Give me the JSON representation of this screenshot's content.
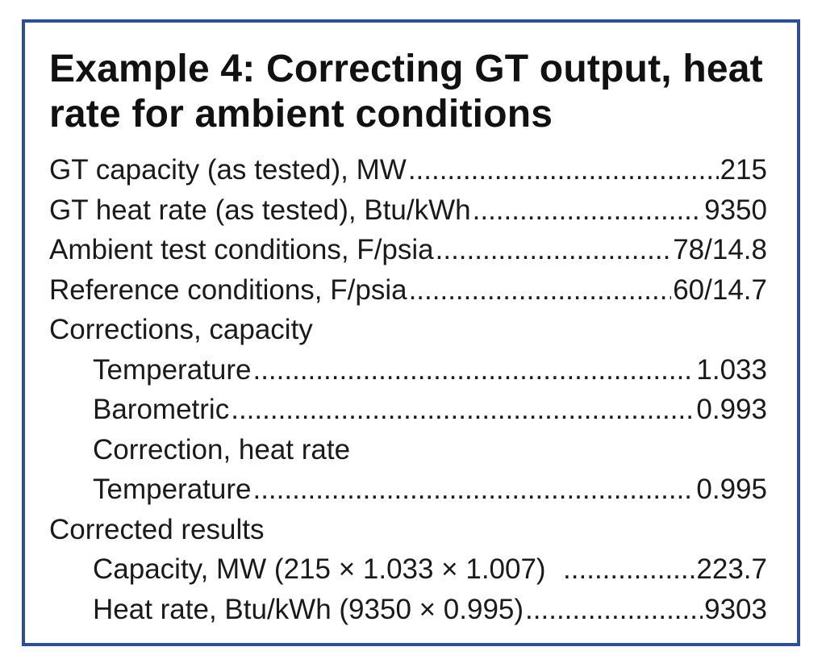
{
  "title": "Example 4: Correcting GT output, heat rate for ambient conditions",
  "rows": [
    {
      "label": "GT capacity (as tested), MW",
      "value": "215"
    },
    {
      "label": "GT heat rate (as tested), Btu/kWh",
      "value": "9350"
    },
    {
      "label": "Ambient test conditions, F/psia ",
      "value": "78/14.8"
    },
    {
      "label": "Reference conditions, F/psia ",
      "value": "60/14.7"
    },
    {
      "label": "Corrections, capacity",
      "value": ""
    },
    {
      "label": "Temperature ",
      "value": "1.033"
    },
    {
      "label": "Barometric",
      "value": "0.993"
    },
    {
      "label": "Correction, heat rate",
      "value": ""
    },
    {
      "label": "Temperature ",
      "value": "0.995"
    },
    {
      "label": "Corrected results",
      "value": ""
    },
    {
      "label": "Capacity, MW (215 × 1.033 × 1.007)  ",
      "value": "223.7"
    },
    {
      "label": "Heat rate, Btu/kWh (9350 × 0.995)",
      "value": "9303"
    }
  ]
}
